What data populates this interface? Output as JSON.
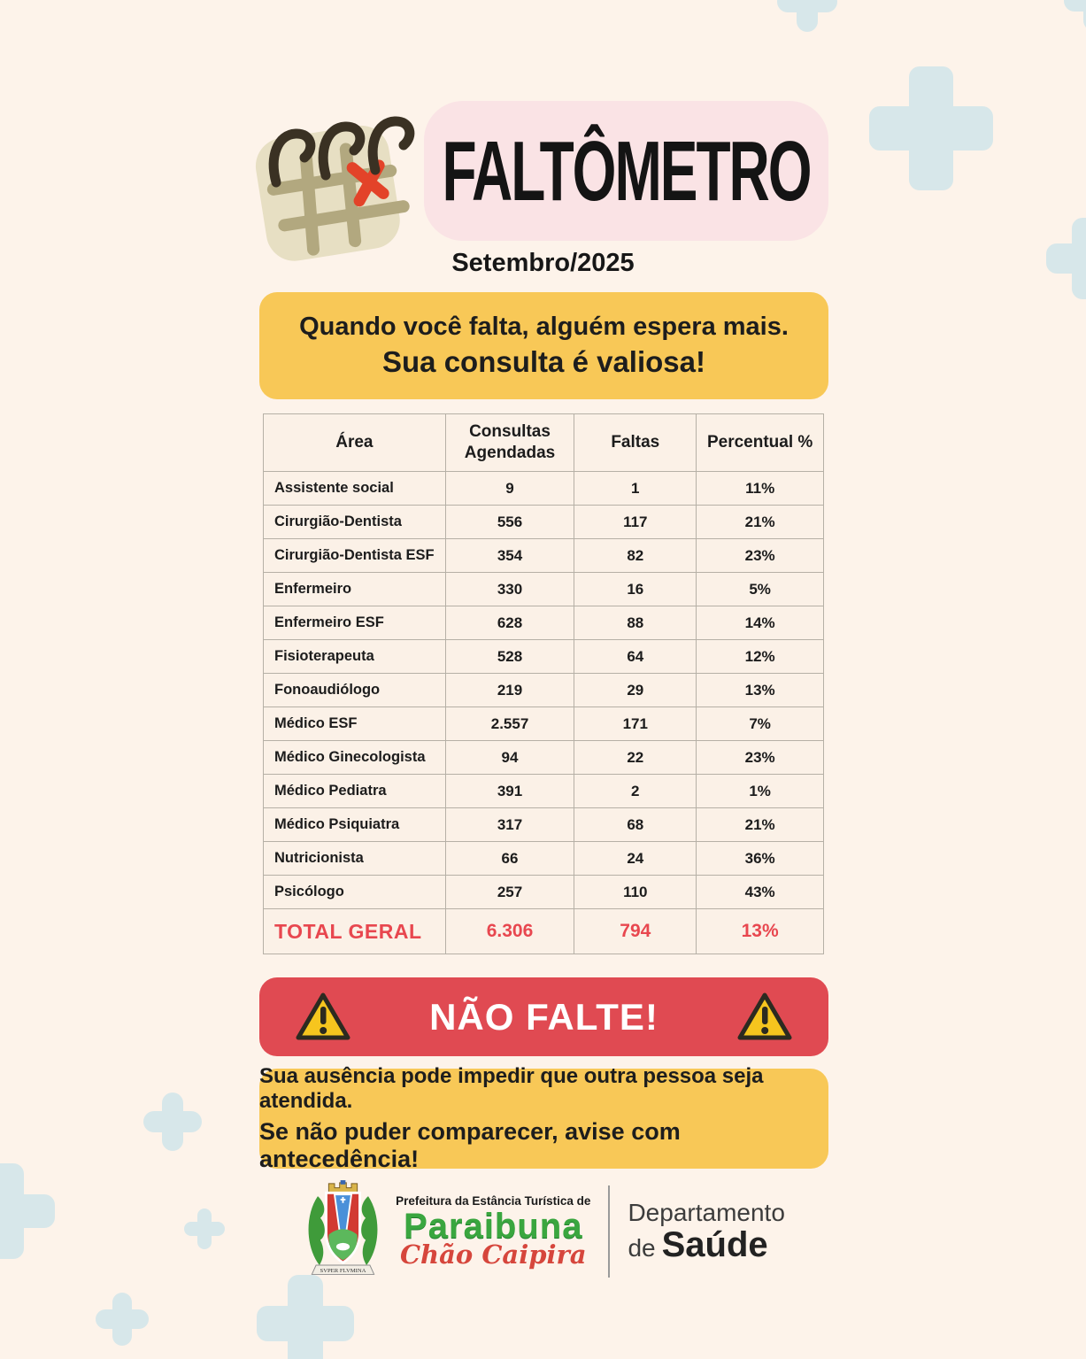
{
  "page": {
    "title": "FALTÔMETRO",
    "period": "Setembro/2025"
  },
  "banner_top": {
    "line1": "Quando você falta, alguém espera mais.",
    "line2": "Sua consulta é valiosa!"
  },
  "table": {
    "headers": {
      "area": "Área",
      "consultas": "Consultas Agendadas",
      "faltas": "Faltas",
      "percentual": "Percentual %"
    },
    "rows": [
      {
        "area": "Assistente social",
        "consultas": "9",
        "faltas": "1",
        "percentual": "11%"
      },
      {
        "area": "Cirurgião-Dentista",
        "consultas": "556",
        "faltas": "117",
        "percentual": "21%"
      },
      {
        "area": "Cirurgião-Dentista ESF",
        "consultas": "354",
        "faltas": "82",
        "percentual": "23%"
      },
      {
        "area": "Enfermeiro",
        "consultas": "330",
        "faltas": "16",
        "percentual": "5%"
      },
      {
        "area": "Enfermeiro ESF",
        "consultas": "628",
        "faltas": "88",
        "percentual": "14%"
      },
      {
        "area": "Fisioterapeuta",
        "consultas": "528",
        "faltas": "64",
        "percentual": "12%"
      },
      {
        "area": "Fonoaudiólogo",
        "consultas": "219",
        "faltas": "29",
        "percentual": "13%"
      },
      {
        "area": "Médico ESF",
        "consultas": "2.557",
        "faltas": "171",
        "percentual": "7%"
      },
      {
        "area": "Médico Ginecologista",
        "consultas": "94",
        "faltas": "22",
        "percentual": "23%"
      },
      {
        "area": "Médico Pediatra",
        "consultas": "391",
        "faltas": "2",
        "percentual": "1%"
      },
      {
        "area": "Médico Psiquiatra",
        "consultas": "317",
        "faltas": "68",
        "percentual": "21%"
      },
      {
        "area": "Nutricionista",
        "consultas": "66",
        "faltas": "24",
        "percentual": "36%"
      },
      {
        "area": "Psicólogo",
        "consultas": "257",
        "faltas": "110",
        "percentual": "43%"
      }
    ],
    "total": {
      "label": "TOTAL GERAL",
      "consultas": "6.306",
      "faltas": "794",
      "percentual": "13%"
    }
  },
  "alert": {
    "text": "NÃO FALTE!"
  },
  "banner_bottom": {
    "line1": "Sua ausência pode impedir que outra pessoa seja atendida.",
    "line2": "Se não puder comparecer, avise com antecedência!"
  },
  "footer": {
    "org_small": "Prefeitura da Estância Turística de",
    "org_name": "Paraibuna",
    "org_slogan": "Chão Caipira",
    "crest_motto": "SVPER FLVMINA",
    "dept_line1": "Departamento",
    "dept_de": "de",
    "dept_bold": "Saúde"
  },
  "icons": {
    "calendar": "calendar-missed-x-icon",
    "warning": "warning-triangle-icon",
    "decoration": "plus-icon",
    "crest": "paraibuna-coat-of-arms"
  },
  "colors": {
    "background": "#fdf3ea",
    "pink_box": "#fae3e5",
    "yellow_box": "#f8c857",
    "red_banner": "#e04a52",
    "total_red": "#e8474f",
    "plus_decoration": "#d7e7ea",
    "table_cell": "#fbf1e7",
    "org_green": "#3aa63f",
    "slogan_red": "#d6463c"
  }
}
